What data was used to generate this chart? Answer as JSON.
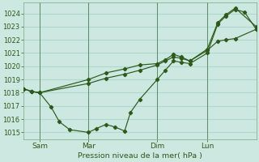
{
  "bg_color": "#cce8e0",
  "grid_color": "#b0d8d0",
  "line_color": "#2d5a1b",
  "marker_color": "#2d5a1b",
  "xlabel": "Pression niveau de la mer( hPa )",
  "ylim": [
    1014.5,
    1024.8
  ],
  "yticks": [
    1015,
    1016,
    1017,
    1018,
    1019,
    1020,
    1021,
    1022,
    1023,
    1024
  ],
  "xtick_labels": [
    "Sam",
    "Mar",
    "Dim",
    "Lun"
  ],
  "xtick_pos": [
    0.07,
    0.28,
    0.575,
    0.79
  ],
  "vline_pos": [
    0.07,
    0.28,
    0.575,
    0.79
  ],
  "series_low_x": [
    0.0,
    0.035,
    0.07,
    0.12,
    0.155,
    0.2,
    0.28,
    0.315,
    0.355,
    0.395,
    0.435,
    0.46,
    0.5,
    0.575,
    0.61,
    0.645,
    0.68,
    0.715,
    0.79,
    0.835,
    0.87,
    0.91,
    0.95,
    1.0
  ],
  "series_low_y": [
    1018.3,
    1018.1,
    1018.0,
    1016.9,
    1015.8,
    1015.2,
    1015.0,
    1015.3,
    1015.6,
    1015.4,
    1015.1,
    1016.5,
    1017.5,
    1019.0,
    1019.7,
    1020.4,
    1020.3,
    1020.2,
    1021.0,
    1023.2,
    1023.8,
    1024.3,
    1024.1,
    1022.8
  ],
  "series_mid_x": [
    0.0,
    0.035,
    0.07,
    0.28,
    0.355,
    0.435,
    0.5,
    0.575,
    0.61,
    0.645,
    0.68,
    0.715,
    0.79,
    0.835,
    0.87,
    0.91,
    1.0
  ],
  "series_mid_y": [
    1018.3,
    1018.1,
    1018.0,
    1018.7,
    1019.1,
    1019.4,
    1019.7,
    1020.1,
    1020.4,
    1020.7,
    1020.6,
    1020.4,
    1021.2,
    1021.9,
    1022.0,
    1022.1,
    1022.8
  ],
  "series_high_x": [
    0.0,
    0.035,
    0.07,
    0.28,
    0.355,
    0.435,
    0.5,
    0.575,
    0.61,
    0.645,
    0.68,
    0.715,
    0.79,
    0.835,
    0.87,
    0.91,
    1.0
  ],
  "series_high_y": [
    1018.3,
    1018.1,
    1018.0,
    1019.0,
    1019.5,
    1019.8,
    1020.1,
    1020.2,
    1020.5,
    1020.9,
    1020.7,
    1020.4,
    1021.3,
    1023.3,
    1023.9,
    1024.4,
    1023.0
  ]
}
